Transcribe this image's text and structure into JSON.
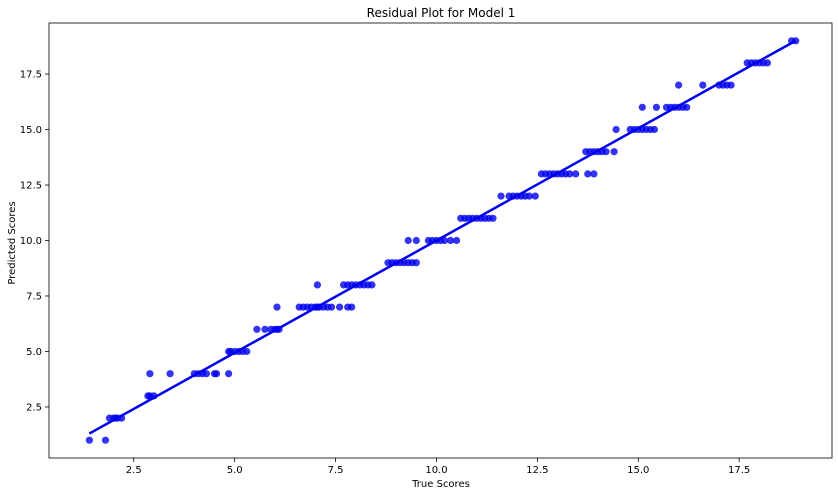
{
  "chart_data": {
    "type": "scatter",
    "title": "Residual Plot for Model 1",
    "xlabel": "True Scores",
    "ylabel": "Predicted Scores",
    "xlim": [
      0.4,
      19.8
    ],
    "ylim": [
      0.2,
      19.8
    ],
    "x_ticks": [
      2.5,
      5.0,
      7.5,
      10.0,
      12.5,
      15.0,
      17.5
    ],
    "y_ticks": [
      2.5,
      5.0,
      7.5,
      10.0,
      12.5,
      15.0,
      17.5
    ],
    "grid": false,
    "color": "#0000ee",
    "points": {
      "x": [
        1.4,
        1.8,
        1.9,
        2.0,
        2.05,
        2.1,
        2.2,
        2.85,
        2.9,
        3.0,
        2.9,
        3.4,
        4.0,
        4.1,
        4.2,
        4.3,
        4.5,
        4.55,
        4.85,
        4.9,
        4.85,
        5.0,
        5.1,
        5.2,
        5.3,
        5.55,
        5.75,
        5.9,
        6.0,
        6.05,
        6.1,
        6.05,
        6.6,
        6.7,
        6.8,
        6.9,
        7.0,
        7.05,
        7.1,
        7.2,
        7.3,
        7.4,
        7.6,
        7.8,
        7.9,
        7.05,
        7.7,
        7.8,
        7.9,
        8.0,
        8.1,
        8.2,
        8.3,
        8.4,
        8.8,
        8.9,
        9.0,
        9.1,
        9.2,
        9.3,
        9.4,
        9.5,
        9.3,
        9.5,
        9.8,
        9.9,
        10.0,
        10.1,
        10.2,
        10.35,
        10.5,
        10.7,
        10.6,
        10.8,
        10.9,
        11.0,
        11.1,
        11.2,
        11.3,
        11.4,
        11.6,
        11.8,
        11.9,
        12.0,
        12.1,
        12.2,
        12.3,
        12.45,
        12.6,
        12.7,
        12.8,
        12.9,
        13.0,
        13.1,
        13.2,
        13.3,
        13.45,
        13.7,
        13.8,
        13.9,
        14.0,
        14.1,
        14.2,
        13.75,
        13.9,
        14.4,
        14.45,
        14.8,
        14.9,
        15.0,
        15.1,
        15.2,
        15.3,
        15.4,
        15.1,
        15.45,
        15.7,
        15.8,
        15.9,
        16.0,
        16.1,
        16.2,
        16.0,
        16.6,
        17.0,
        17.1,
        17.2,
        17.3,
        17.7,
        17.8,
        17.9,
        18.0,
        18.1,
        18.2,
        18.8,
        18.9
      ],
      "y": [
        1.0,
        1.0,
        2.0,
        2.0,
        2.0,
        2.0,
        2.0,
        3.0,
        4.0,
        3.0,
        3.0,
        4.0,
        4.0,
        4.0,
        4.0,
        4.0,
        4.0,
        4.0,
        5.0,
        5.0,
        4.0,
        5.0,
        5.0,
        5.0,
        5.0,
        6.0,
        6.0,
        6.0,
        6.0,
        7.0,
        6.0,
        6.0,
        7.0,
        7.0,
        7.0,
        7.0,
        7.0,
        7.0,
        7.0,
        7.0,
        7.0,
        7.0,
        7.0,
        7.0,
        7.0,
        8.0,
        8.0,
        8.0,
        8.0,
        8.0,
        8.0,
        8.0,
        8.0,
        8.0,
        9.0,
        9.0,
        9.0,
        9.0,
        9.0,
        9.0,
        9.0,
        9.0,
        10.0,
        10.0,
        10.0,
        10.0,
        10.0,
        10.0,
        10.0,
        10.0,
        10.0,
        11.0,
        11.0,
        11.0,
        11.0,
        11.0,
        11.0,
        11.0,
        11.0,
        11.0,
        12.0,
        12.0,
        12.0,
        12.0,
        12.0,
        12.0,
        12.0,
        12.0,
        13.0,
        13.0,
        13.0,
        13.0,
        13.0,
        13.0,
        13.0,
        13.0,
        13.0,
        14.0,
        14.0,
        14.0,
        14.0,
        14.0,
        14.0,
        13.0,
        13.0,
        14.0,
        15.0,
        15.0,
        15.0,
        15.0,
        15.0,
        15.0,
        15.0,
        15.0,
        16.0,
        16.0,
        16.0,
        16.0,
        16.0,
        16.0,
        16.0,
        16.0,
        17.0,
        17.0,
        17.0,
        17.0,
        17.0,
        17.0,
        18.0,
        18.0,
        18.0,
        18.0,
        18.0,
        18.0,
        19.0,
        19.0
      ]
    },
    "fit_line": {
      "x": [
        1.4,
        18.9
      ],
      "y": [
        1.3,
        19.0
      ]
    }
  }
}
